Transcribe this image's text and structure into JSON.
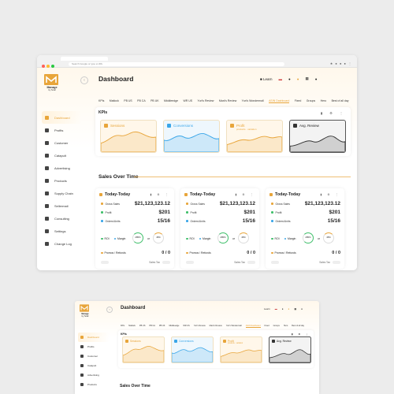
{
  "browser": {
    "url": "Search Google or type a URL"
  },
  "brand": {
    "name": "Manage",
    "sub": "by Scall"
  },
  "page_title": "Dashboard",
  "topbar": {
    "learn": "Learn"
  },
  "sidebar": {
    "items": [
      {
        "label": "Dashboard",
        "icon": "dashboard-icon"
      },
      {
        "label": "Profits",
        "icon": "profits-icon"
      },
      {
        "label": "Customer",
        "icon": "customer-icon"
      },
      {
        "label": "Catapult",
        "icon": "catapult-icon"
      },
      {
        "label": "Advertising",
        "icon": "advertising-icon"
      },
      {
        "label": "Products",
        "icon": "products-icon"
      },
      {
        "label": "Supply Chain",
        "icon": "supply-chain-icon"
      },
      {
        "label": "Sellermail",
        "icon": "sellermail-icon"
      },
      {
        "label": "Consulting",
        "icon": "consulting-icon"
      },
      {
        "label": "Settings",
        "icon": "settings-icon"
      },
      {
        "label": "Change Log",
        "icon": "change-log-icon"
      }
    ]
  },
  "tabs": [
    "KPIs",
    "Matlock",
    "PB US",
    "PB CA",
    "PB UK",
    "Middleedge",
    "WR US",
    "Yuri's Review",
    "Mani's Review",
    "Yuri's Wondermall",
    "ASIN Dashboard",
    "Fixed",
    "Groups",
    "Hero",
    "Best of all day"
  ],
  "kpis": {
    "title": "KPIs",
    "cards": [
      {
        "label": "Sessions",
        "color": "#e8a53a"
      },
      {
        "label": "Conversions",
        "color": "#3aa6e8"
      },
      {
        "label": "Profit",
        "sub": "products · variation",
        "color": "#e8a53a"
      },
      {
        "label": "Avg. Review",
        "color": "#333333"
      }
    ]
  },
  "sales": {
    "title": "Sales Over Time",
    "cards": [
      {
        "header": "Today-Today",
        "gross_label": "Gross Sales",
        "gross": "$21,123,123.12",
        "profit_label": "Profit",
        "profit": "$201",
        "orders_label": "Orders/Units",
        "orders": "15/16",
        "roi": "ROI",
        "margin": "Margin",
        "roi_val": "285%",
        "margin_val": "45%",
        "or": "or",
        "promos_label": "Promos / Refunds",
        "promos": "0 / 0",
        "tax": "Sales Tax"
      },
      {
        "header": "Today-Today",
        "gross_label": "Gross Sales",
        "gross": "$21,123,123.12",
        "profit_label": "Profit",
        "profit": "$201",
        "orders_label": "Orders/Units",
        "orders": "15/16",
        "roi": "ROI",
        "margin": "Margin",
        "roi_val": "285%",
        "margin_val": "45%",
        "or": "or",
        "promos_label": "Promos / Refunds",
        "promos": "0 / 0",
        "tax": "Sales Tax"
      },
      {
        "header": "Today-Today",
        "gross_label": "Gross Sales",
        "gross": "$21,123,123.12",
        "profit_label": "Profit",
        "profit": "$201",
        "orders_label": "Orders/Units",
        "orders": "15/16",
        "roi": "ROI",
        "margin": "Margin",
        "roi_val": "285%",
        "margin_val": "45%",
        "or": "or",
        "promos_label": "Promos / Refunds",
        "promos": "0 / 0",
        "tax": "Sales Tax"
      }
    ]
  },
  "colors": {
    "accent": "#e8a53a",
    "blue": "#3aa6e8",
    "green": "#3fbf6a"
  }
}
